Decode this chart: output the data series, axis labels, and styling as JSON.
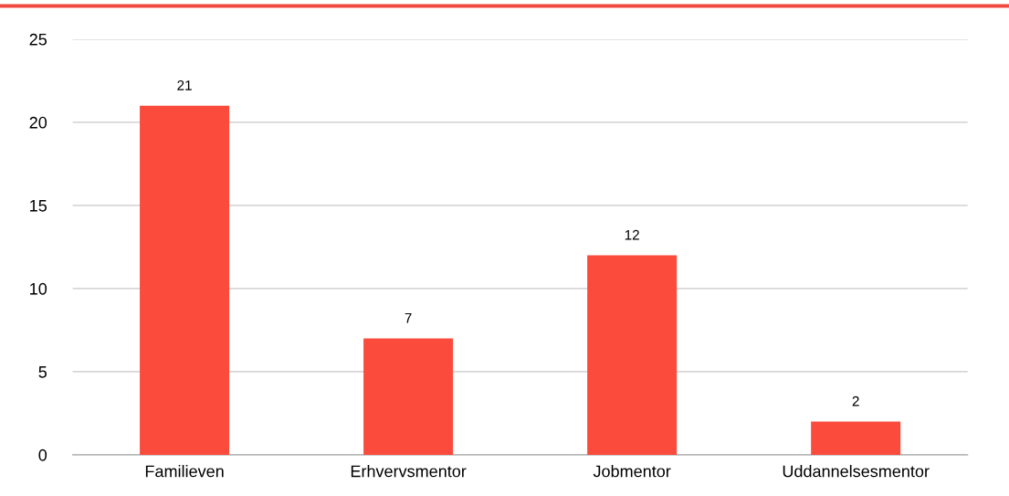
{
  "chart_data": {
    "type": "bar",
    "categories": [
      "Familieven",
      "Erhvervsmentor",
      "Jobmentor",
      "Uddannelsesmentor"
    ],
    "values": [
      21,
      7,
      12,
      2
    ],
    "color": "#fa4b3c",
    "ylim": [
      0,
      25
    ],
    "yticks": [
      0,
      5,
      10,
      15,
      20,
      25
    ],
    "grid": "y",
    "data_labels": true
  }
}
